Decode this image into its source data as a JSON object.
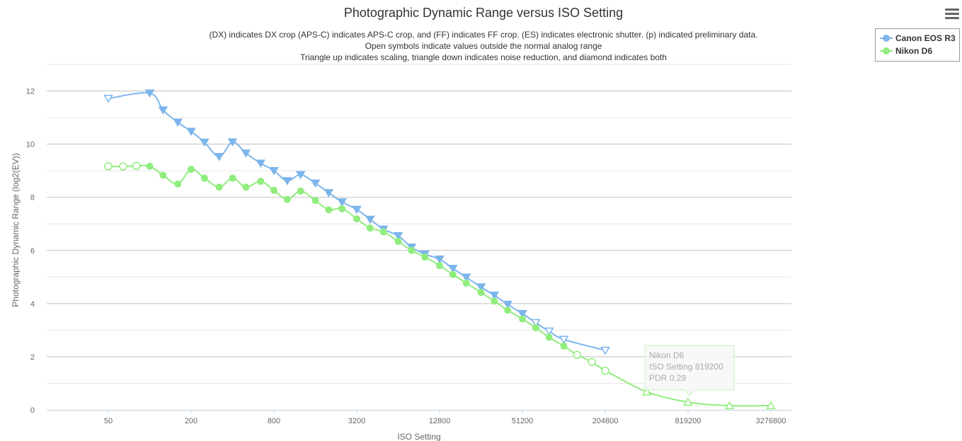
{
  "chart_data": {
    "type": "line",
    "title": "Photographic Dynamic Range versus ISO Setting",
    "subtitle": [
      "(DX) indicates DX crop (APS-C) indicates APS-C crop, and (FF) indicates FF crop. (ES) indicates electronic shutter. (p) indicated preliminary data.",
      "Open symbols indicate values outside the normal analog range",
      "Triangle up indicates scaling, triangle down indicates noise reduction, and diamond indicates both"
    ],
    "xlabel": "ISO Setting",
    "ylabel": "Photographic Dynamic Range (log2(EV))",
    "x_scale": "log2",
    "x_ticks": [
      50,
      200,
      800,
      3200,
      12800,
      51200,
      204800,
      819200,
      3276800
    ],
    "x_range": [
      50,
      3276800
    ],
    "y_ticks": [
      0,
      2,
      4,
      6,
      8,
      10,
      12
    ],
    "ylim": [
      0,
      13
    ],
    "grid": true,
    "legend_position": "top-right",
    "series": [
      {
        "name": "Canon EOS R3",
        "color": "#7cb5ec",
        "marker": "triangle-down",
        "x": [
          50,
          100,
          125,
          160,
          200,
          250,
          320,
          400,
          500,
          640,
          800,
          1000,
          1250,
          1600,
          2000,
          2500,
          3200,
          4000,
          5000,
          6400,
          8000,
          10000,
          12800,
          16000,
          20000,
          25600,
          32000,
          40000,
          51200,
          64000,
          80000,
          102400,
          204800
        ],
        "y": [
          11.72,
          11.92,
          11.28,
          10.82,
          10.48,
          10.07,
          9.53,
          10.08,
          9.66,
          9.28,
          9.0,
          8.62,
          8.85,
          8.53,
          8.17,
          7.82,
          7.54,
          7.17,
          6.8,
          6.55,
          6.12,
          5.86,
          5.67,
          5.32,
          4.99,
          4.62,
          4.31,
          3.97,
          3.62,
          3.28,
          2.96,
          2.65,
          2.24
        ],
        "open": [
          true,
          false,
          false,
          false,
          false,
          false,
          false,
          false,
          false,
          false,
          false,
          false,
          false,
          false,
          false,
          false,
          false,
          false,
          false,
          false,
          false,
          false,
          false,
          false,
          false,
          false,
          false,
          false,
          false,
          true,
          true,
          true,
          true
        ]
      },
      {
        "name": "Nikon D6",
        "color": "#90ed7d",
        "marker": "circle",
        "x": [
          50,
          64,
          80,
          100,
          125,
          160,
          200,
          250,
          320,
          400,
          500,
          640,
          800,
          1000,
          1250,
          1600,
          2000,
          2500,
          3200,
          4000,
          5000,
          6400,
          8000,
          10000,
          12800,
          16000,
          20000,
          25600,
          32000,
          40000,
          51200,
          64000,
          80000,
          102400,
          128000,
          164000,
          204800,
          409600,
          819200,
          1640000,
          3276800
        ],
        "y": [
          9.17,
          9.16,
          9.18,
          9.17,
          8.83,
          8.5,
          9.05,
          8.72,
          8.38,
          8.72,
          8.38,
          8.6,
          8.26,
          7.92,
          8.23,
          7.88,
          7.53,
          7.57,
          7.19,
          6.84,
          6.7,
          6.34,
          6.0,
          5.75,
          5.43,
          5.09,
          4.77,
          4.42,
          4.09,
          3.75,
          3.42,
          3.09,
          2.73,
          2.4,
          2.07,
          1.8,
          1.48,
          0.68,
          0.29,
          0.16,
          0.16
        ],
        "markers": [
          "co",
          "co",
          "co",
          "c",
          "c",
          "c",
          "c",
          "c",
          "c",
          "c",
          "c",
          "c",
          "c",
          "c",
          "c",
          "c",
          "c",
          "c",
          "c",
          "c",
          "c",
          "c",
          "c",
          "c",
          "c",
          "c",
          "c",
          "c",
          "c",
          "c",
          "c",
          "c",
          "c",
          "c",
          "co",
          "co",
          "co",
          "tu",
          "tu",
          "tu",
          "tu"
        ]
      }
    ],
    "tooltip": {
      "series": "Nikon D6",
      "x_label": "ISO Setting",
      "x_value": "819200",
      "y_label": "PDR",
      "y_value": "0.29"
    }
  },
  "menu_icon": "hamburger-menu-icon"
}
